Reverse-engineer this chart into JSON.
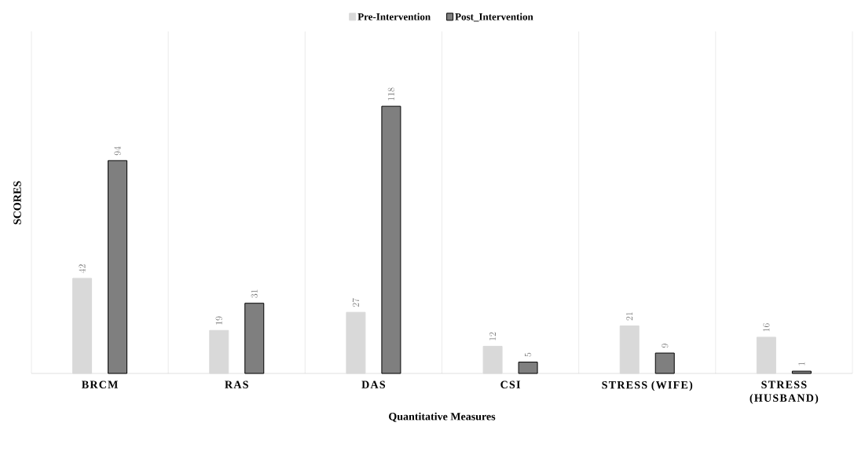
{
  "chart_data": {
    "type": "bar",
    "xlabel": "Quantitative Measures",
    "ylabel": "SCORES",
    "categories": [
      "BRCM",
      "RAS",
      "DAS",
      "CSI",
      "STRESS (WIFE)",
      "STRESS (HUSBAND)"
    ],
    "series": [
      {
        "name": "Pre-Intervention",
        "color": "#d9d9d9",
        "values": [
          42,
          19,
          27,
          12,
          21,
          16
        ]
      },
      {
        "name": "Post_Intervention",
        "color": "#7f7f7f",
        "values": [
          94,
          31,
          118,
          5,
          9,
          1
        ]
      }
    ],
    "data_labels": true,
    "grid": "x",
    "legend": "top"
  }
}
